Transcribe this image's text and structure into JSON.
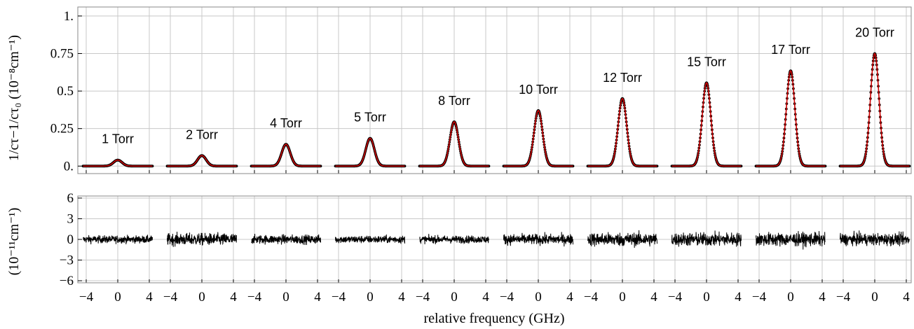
{
  "chart_data": {
    "type": "line",
    "xlabel": "relative frequency (GHz)",
    "panels": {
      "top": {
        "ylabel": "1/cτ−1/cτ₀ (10⁻⁸cm⁻¹)",
        "ylim": [
          -0.05,
          1.06
        ],
        "yticks": [
          0.0,
          0.25,
          0.5,
          0.75,
          1.0
        ],
        "ytick_labels": [
          "0.",
          "0.25",
          "0.5",
          "0.75",
          "1."
        ],
        "grid": true
      },
      "bottom": {
        "ylabel": "(10⁻¹¹cm⁻¹)",
        "ylim": [
          -6.3,
          6.3
        ],
        "yticks": [
          -6,
          -3,
          0,
          3,
          6
        ],
        "ytick_labels": [
          "−6",
          "−3",
          "0",
          "3",
          "6"
        ],
        "grid": true
      }
    },
    "segment_xlim": [
      -4,
      4
    ],
    "segment_xticks": [
      -4,
      0,
      4
    ],
    "segment_xtick_labels": [
      "−4",
      "0",
      "4"
    ],
    "series": [
      {
        "name": "1 Torr",
        "peak": 0.04,
        "width_ghz": 0.8,
        "residual_amp": 0.5
      },
      {
        "name": "2 Torr",
        "peak": 0.07,
        "width_ghz": 0.8,
        "residual_amp": 0.8
      },
      {
        "name": "4 Torr",
        "peak": 0.145,
        "width_ghz": 0.8,
        "residual_amp": 0.6
      },
      {
        "name": "5 Torr",
        "peak": 0.185,
        "width_ghz": 0.8,
        "residual_amp": 0.5
      },
      {
        "name": "8 Torr",
        "peak": 0.295,
        "width_ghz": 0.8,
        "residual_amp": 0.5
      },
      {
        "name": "10 Torr",
        "peak": 0.37,
        "width_ghz": 0.8,
        "residual_amp": 0.7
      },
      {
        "name": "12 Torr",
        "peak": 0.45,
        "width_ghz": 0.8,
        "residual_amp": 0.9
      },
      {
        "name": "15 Torr",
        "peak": 0.555,
        "width_ghz": 0.8,
        "residual_amp": 0.9
      },
      {
        "name": "17 Torr",
        "peak": 0.635,
        "width_ghz": 0.8,
        "residual_amp": 0.9
      },
      {
        "name": "20 Torr",
        "peak": 0.75,
        "width_ghz": 0.8,
        "residual_amp": 0.8
      }
    ],
    "colors": {
      "fit": "#cc0000",
      "points": "#000000",
      "residual": "#000000",
      "grid": "#c8c8c8"
    }
  }
}
